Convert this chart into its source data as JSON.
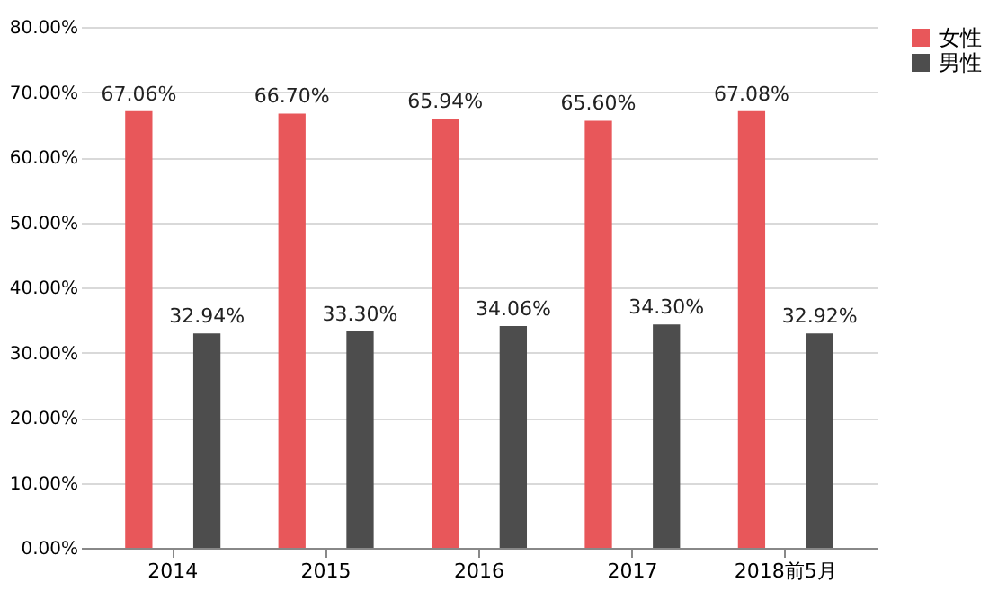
{
  "chart_data": {
    "type": "bar",
    "categories": [
      "2014",
      "2015",
      "2016",
      "2017",
      "2018前5月"
    ],
    "series": [
      {
        "name": "女性",
        "color": "#e8575a",
        "values": [
          67.06,
          66.7,
          65.94,
          65.6,
          67.08
        ],
        "value_labels": [
          "67.06%",
          "66.70%",
          "65.94%",
          "65.60%",
          "67.08%"
        ]
      },
      {
        "name": "男性",
        "color": "#4d4d4d",
        "values": [
          32.94,
          33.3,
          34.06,
          34.3,
          32.92
        ],
        "value_labels": [
          "32.94%",
          "33.30%",
          "34.06%",
          "34.30%",
          "32.92%"
        ]
      }
    ],
    "ylim": [
      0,
      80
    ],
    "yticks": [
      {
        "value": 0,
        "label": "0.00%"
      },
      {
        "value": 10,
        "label": "10.00%"
      },
      {
        "value": 20,
        "label": "20.00%"
      },
      {
        "value": 30,
        "label": "30.00%"
      },
      {
        "value": 40,
        "label": "40.00%"
      },
      {
        "value": 50,
        "label": "50.00%"
      },
      {
        "value": 60,
        "label": "60.00%"
      },
      {
        "value": 70,
        "label": "70.00%"
      },
      {
        "value": 80,
        "label": "80.00%"
      }
    ],
    "grid": "y",
    "legend": "right"
  }
}
